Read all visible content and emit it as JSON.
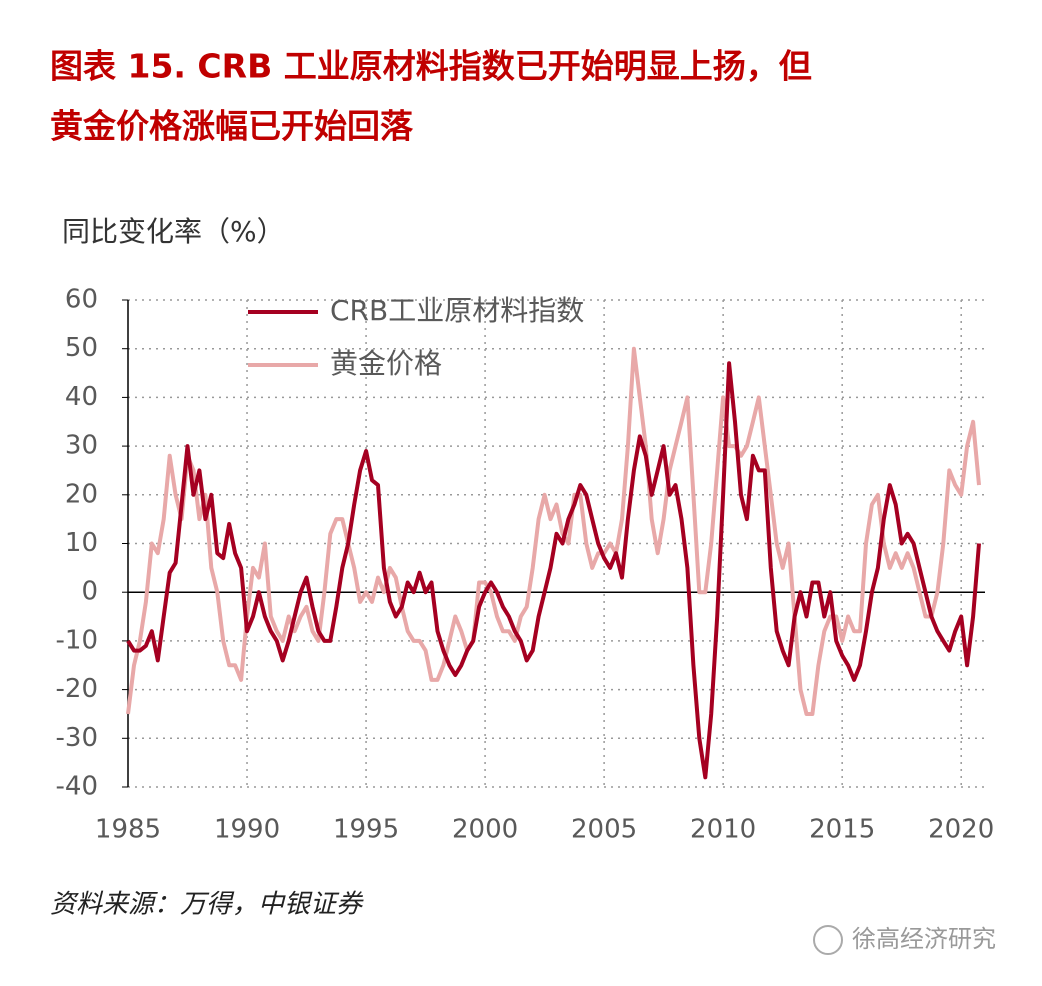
{
  "chart_data": {
    "type": "line",
    "title": [
      "图表 15.  CRB 工业原材料指数已开始明显上扬，但",
      "黄金价格涨幅已开始回落"
    ],
    "y_label": "同比变化率（%）",
    "source": "资料来源：万得，中银证券",
    "watermark": "徐高经济研究",
    "x": [
      1985,
      1985.25,
      1985.5,
      1985.75,
      1986,
      1986.25,
      1986.5,
      1986.75,
      1987,
      1987.25,
      1987.5,
      1987.75,
      1988,
      1988.25,
      1988.5,
      1988.75,
      1989,
      1989.25,
      1989.5,
      1989.75,
      1990,
      1990.25,
      1990.5,
      1990.75,
      1991,
      1991.25,
      1991.5,
      1991.75,
      1992,
      1992.25,
      1992.5,
      1992.75,
      1993,
      1993.25,
      1993.5,
      1993.75,
      1994,
      1994.25,
      1994.5,
      1994.75,
      1995,
      1995.25,
      1995.5,
      1995.75,
      1996,
      1996.25,
      1996.5,
      1996.75,
      1997,
      1997.25,
      1997.5,
      1997.75,
      1998,
      1998.25,
      1998.5,
      1998.75,
      1999,
      1999.25,
      1999.5,
      1999.75,
      2000,
      2000.25,
      2000.5,
      2000.75,
      2001,
      2001.25,
      2001.5,
      2001.75,
      2002,
      2002.25,
      2002.5,
      2002.75,
      2003,
      2003.25,
      2003.5,
      2003.75,
      2004,
      2004.25,
      2004.5,
      2004.75,
      2005,
      2005.25,
      2005.5,
      2005.75,
      2006,
      2006.25,
      2006.5,
      2006.75,
      2007,
      2007.25,
      2007.5,
      2007.75,
      2008,
      2008.25,
      2008.5,
      2008.75,
      2009,
      2009.25,
      2009.5,
      2009.75,
      2010,
      2010.25,
      2010.5,
      2010.75,
      2011,
      2011.25,
      2011.5,
      2011.75,
      2012,
      2012.25,
      2012.5,
      2012.75,
      2013,
      2013.25,
      2013.5,
      2013.75,
      2014,
      2014.25,
      2014.5,
      2014.75,
      2015,
      2015.25,
      2015.5,
      2015.75,
      2016,
      2016.25,
      2016.5,
      2016.75,
      2017,
      2017.25,
      2017.5,
      2017.75,
      2018,
      2018.25,
      2018.5,
      2018.75,
      2019,
      2019.25,
      2019.5,
      2019.75,
      2020,
      2020.25,
      2020.5,
      2020.75
    ],
    "series": [
      {
        "name": "CRB工业原材料指数",
        "color": "#a50021",
        "values": [
          -10,
          -12,
          -12,
          -11,
          -8,
          -14,
          -5,
          4,
          6,
          18,
          30,
          20,
          25,
          15,
          20,
          8,
          7,
          14,
          8,
          5,
          -8,
          -5,
          0,
          -5,
          -8,
          -10,
          -14,
          -10,
          -5,
          0,
          3,
          -3,
          -8,
          -10,
          -10,
          -3,
          5,
          10,
          18,
          25,
          29,
          23,
          22,
          5,
          -2,
          -5,
          -3,
          2,
          0,
          4,
          0,
          2,
          -8,
          -12,
          -15,
          -17,
          -15,
          -12,
          -10,
          -3,
          0,
          2,
          0,
          -3,
          -5,
          -8,
          -10,
          -14,
          -12,
          -5,
          0,
          5,
          12,
          10,
          15,
          18,
          22,
          20,
          15,
          10,
          7,
          5,
          8,
          3,
          15,
          25,
          32,
          28,
          20,
          25,
          30,
          20,
          22,
          15,
          5,
          -15,
          -30,
          -38,
          -25,
          -5,
          20,
          47,
          35,
          20,
          15,
          28,
          25,
          25,
          5,
          -8,
          -12,
          -15,
          -5,
          0,
          -5,
          2,
          2,
          -5,
          0,
          -10,
          -13,
          -15,
          -18,
          -15,
          -8,
          0,
          5,
          15,
          22,
          18,
          10,
          12,
          10,
          5,
          0,
          -5,
          -8,
          -10,
          -12,
          -8,
          -5,
          -15,
          -5,
          10
        ]
      },
      {
        "name": "黄金价格",
        "color": "#e8a8a8",
        "values": [
          -25,
          -15,
          -10,
          -2,
          10,
          8,
          15,
          28,
          20,
          15,
          28,
          25,
          15,
          20,
          5,
          0,
          -10,
          -15,
          -15,
          -18,
          -5,
          5,
          3,
          10,
          -5,
          -8,
          -10,
          -5,
          -8,
          -5,
          -3,
          -8,
          -10,
          0,
          12,
          15,
          15,
          10,
          5,
          -2,
          0,
          -2,
          3,
          0,
          5,
          3,
          -3,
          -8,
          -10,
          -10,
          -12,
          -18,
          -18,
          -15,
          -10,
          -5,
          -8,
          -12,
          -10,
          2,
          2,
          0,
          -5,
          -8,
          -8,
          -10,
          -5,
          -3,
          5,
          15,
          20,
          15,
          18,
          12,
          10,
          20,
          20,
          10,
          5,
          8,
          8,
          10,
          8,
          15,
          30,
          50,
          40,
          30,
          15,
          8,
          15,
          25,
          30,
          35,
          40,
          20,
          0,
          0,
          10,
          25,
          40,
          30,
          30,
          28,
          30,
          35,
          40,
          30,
          20,
          10,
          5,
          10,
          -5,
          -20,
          -25,
          -25,
          -15,
          -8,
          -5,
          -5,
          -10,
          -5,
          -8,
          -8,
          10,
          18,
          20,
          10,
          5,
          8,
          5,
          8,
          5,
          0,
          -5,
          -5,
          0,
          10,
          25,
          22,
          20,
          30,
          35,
          22
        ]
      }
    ],
    "xlim": [
      1985,
      2021
    ],
    "xticks": [
      1985,
      1990,
      1995,
      2000,
      2005,
      2010,
      2015,
      2020
    ],
    "ylim": [
      -40,
      60
    ],
    "yticks": [
      -40,
      -30,
      -20,
      -10,
      0,
      10,
      20,
      30,
      40,
      50,
      60
    ],
    "grid": true,
    "legend": "top"
  }
}
